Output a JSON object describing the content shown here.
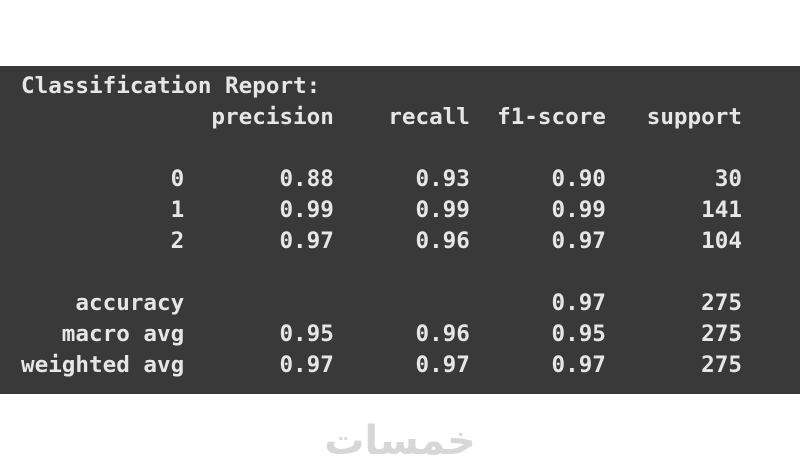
{
  "report": {
    "title": "Classification Report:",
    "columns": [
      "precision",
      "recall",
      "f1-score",
      "support"
    ],
    "rows": [
      {
        "label": "0",
        "values": [
          "0.88",
          "0.93",
          "0.90",
          "30"
        ]
      },
      {
        "label": "1",
        "values": [
          "0.99",
          "0.99",
          "0.99",
          "141"
        ]
      },
      {
        "label": "2",
        "values": [
          "0.97",
          "0.96",
          "0.97",
          "104"
        ]
      }
    ],
    "summary_rows": [
      {
        "label": "accuracy",
        "values": [
          "",
          "",
          "0.97",
          "275"
        ]
      },
      {
        "label": "macro avg",
        "values": [
          "0.95",
          "0.96",
          "0.95",
          "275"
        ]
      },
      {
        "label": "weighted avg",
        "values": [
          "0.97",
          "0.97",
          "0.97",
          "275"
        ]
      }
    ]
  },
  "watermark": {
    "text": "خمسات"
  },
  "colors": {
    "page_bg": "#ffffff",
    "console_bg": "#393939",
    "console_text": "#e6e6e6",
    "watermark": "#d7d7d7"
  }
}
